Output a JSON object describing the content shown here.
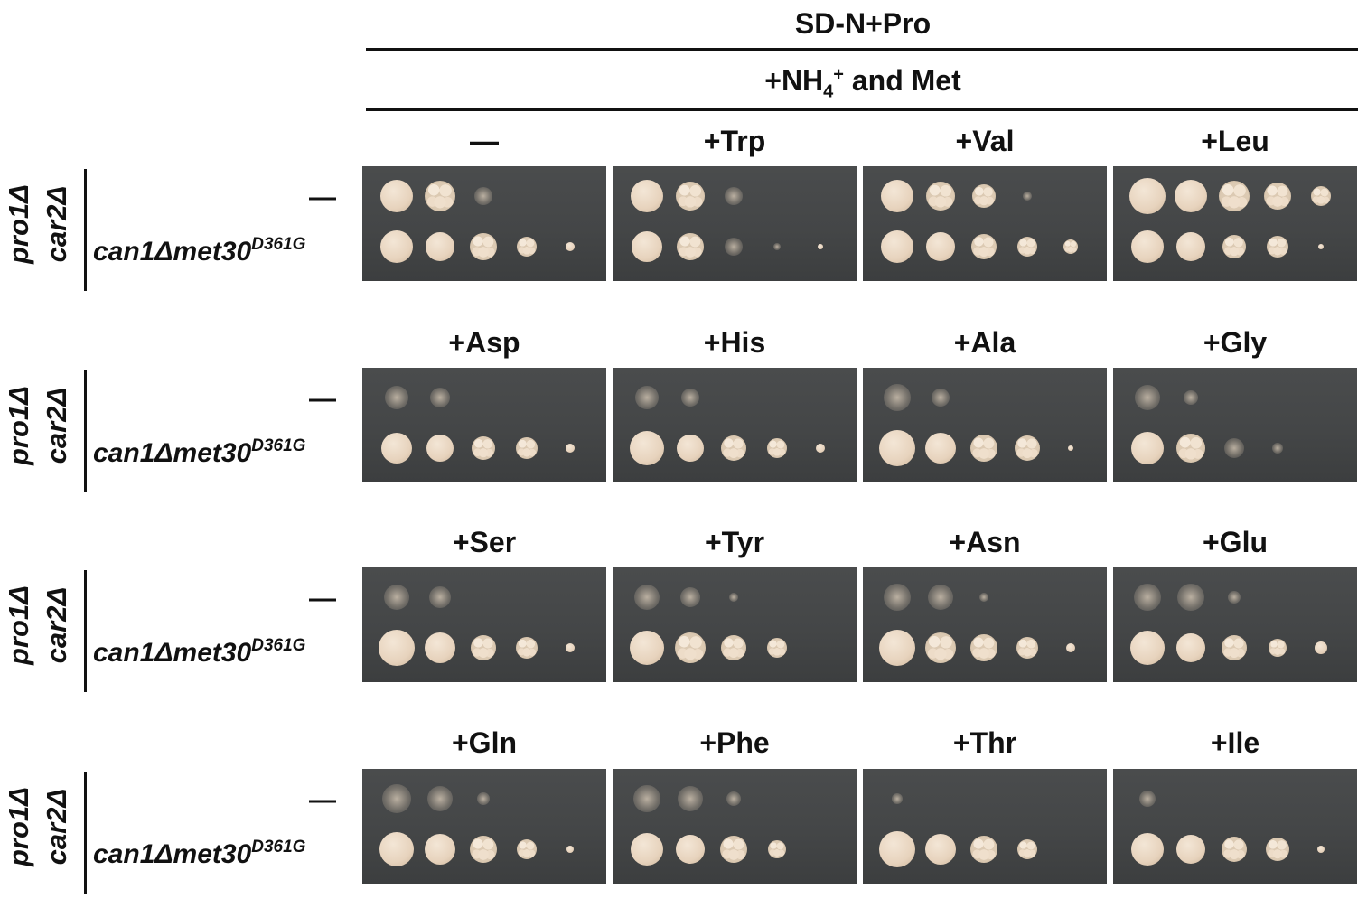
{
  "header": {
    "medium": "SD-N+Pro",
    "supplement_prefix": "+NH",
    "supplement_sub": "4",
    "supplement_sup": "+",
    "supplement_suffix": " and Met"
  },
  "genotype_label": {
    "line1": "pro1Δ",
    "line2": "car2Δ"
  },
  "strain_labels": {
    "control": "—",
    "mutant_base": "can1Δmet30",
    "mutant_allele": "D361G"
  },
  "conditions": [
    [
      "—",
      "+Trp",
      "+Val",
      "+Leu"
    ],
    [
      "+Asp",
      "+His",
      "+Ala",
      "+Gly"
    ],
    [
      "+Ser",
      "+Tyr",
      "+Asn",
      "+Glu"
    ],
    [
      "+Gln",
      "+Phe",
      "+Thr",
      "+Ile"
    ]
  ],
  "colors": {
    "plate": "#444647",
    "colony": "#e7d3bd",
    "text": "#111111"
  }
}
